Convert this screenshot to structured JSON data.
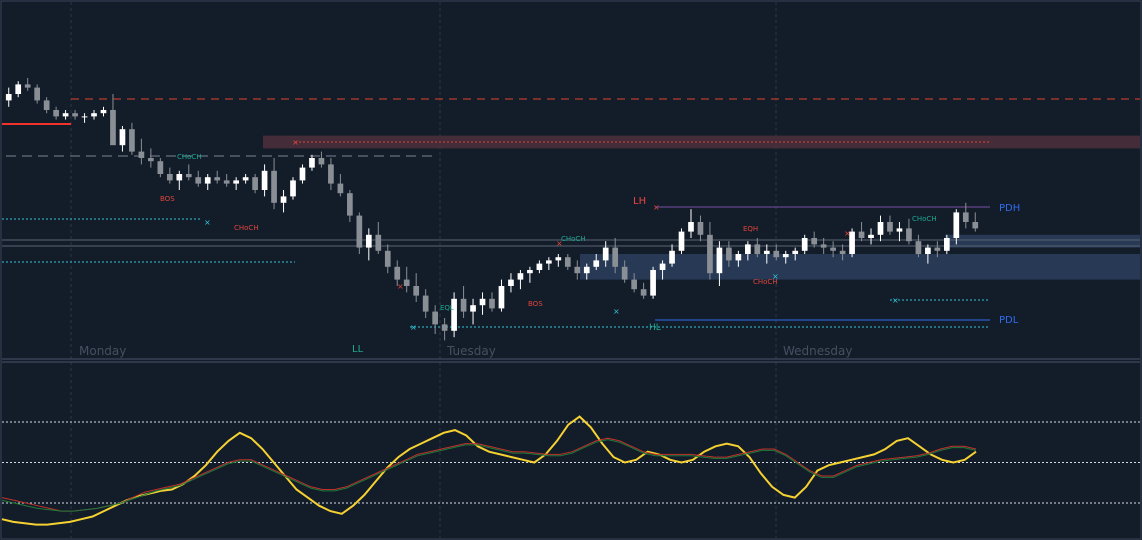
{
  "chart_data": [
    {
      "type": "candlestick",
      "panel": "price",
      "day_labels": [
        "Monday",
        "Tuesday",
        "Wednesday"
      ],
      "levels": {
        "PDH": "PDH",
        "PDL": "PDL"
      },
      "swing_labels": {
        "LH": "LH",
        "LL": "LL",
        "HL": "HL"
      },
      "structure_labels": {
        "bos": "BOS",
        "choch": "CHoCH",
        "eql": "EQL",
        "eqh": "EQH"
      },
      "candles_ohlc": [
        [
          78,
          82,
          76,
          80
        ],
        [
          80,
          84,
          79,
          83
        ],
        [
          83,
          85,
          81,
          82
        ],
        [
          82,
          83,
          77,
          78
        ],
        [
          78,
          79,
          74,
          75
        ],
        [
          75,
          76,
          72,
          73
        ],
        [
          73,
          75,
          72,
          74
        ],
        [
          74,
          75,
          72,
          73
        ],
        [
          73,
          74,
          71,
          73
        ],
        [
          73,
          75,
          72,
          74
        ],
        [
          74,
          76,
          73,
          75
        ],
        [
          75,
          80,
          73,
          64
        ],
        [
          64,
          70,
          62,
          69
        ],
        [
          69,
          71,
          61,
          62
        ],
        [
          62,
          66,
          58,
          60
        ],
        [
          60,
          63,
          57,
          59
        ],
        [
          59,
          60,
          54,
          55
        ],
        [
          55,
          57,
          52,
          53
        ],
        [
          53,
          56,
          50,
          55
        ],
        [
          55,
          58,
          53,
          54
        ],
        [
          54,
          56,
          51,
          52
        ],
        [
          52,
          55,
          50,
          54
        ],
        [
          54,
          56,
          52,
          53
        ],
        [
          53,
          55,
          51,
          52
        ],
        [
          52,
          54,
          50,
          53
        ],
        [
          53,
          55,
          52,
          54
        ],
        [
          54,
          55,
          49,
          50
        ],
        [
          50,
          58,
          48,
          56
        ],
        [
          56,
          60,
          44,
          46
        ],
        [
          46,
          50,
          43,
          48
        ],
        [
          48,
          54,
          47,
          53
        ],
        [
          53,
          58,
          52,
          57
        ],
        [
          57,
          61,
          56,
          60
        ],
        [
          60,
          62,
          57,
          58
        ],
        [
          58,
          60,
          50,
          52
        ],
        [
          52,
          55,
          48,
          49
        ],
        [
          49,
          50,
          40,
          42
        ],
        [
          42,
          43,
          30,
          32
        ],
        [
          32,
          38,
          28,
          36
        ],
        [
          36,
          40,
          30,
          31
        ],
        [
          31,
          33,
          24,
          26
        ],
        [
          26,
          28,
          20,
          22
        ],
        [
          22,
          26,
          18,
          20
        ],
        [
          20,
          24,
          15,
          17
        ],
        [
          17,
          19,
          10,
          12
        ],
        [
          12,
          14,
          5,
          8
        ],
        [
          8,
          10,
          3,
          6
        ],
        [
          6,
          18,
          4,
          16
        ],
        [
          16,
          20,
          10,
          12
        ],
        [
          12,
          16,
          8,
          14
        ],
        [
          14,
          18,
          11,
          16
        ],
        [
          16,
          18,
          12,
          13
        ],
        [
          13,
          22,
          12,
          20
        ],
        [
          20,
          24,
          18,
          22
        ],
        [
          22,
          25,
          19,
          24
        ],
        [
          24,
          26,
          21,
          25
        ],
        [
          25,
          28,
          24,
          27
        ],
        [
          27,
          29,
          25,
          28
        ],
        [
          28,
          30,
          26,
          29
        ],
        [
          29,
          30,
          25,
          26
        ],
        [
          26,
          28,
          22,
          24
        ],
        [
          24,
          27,
          22,
          26
        ],
        [
          26,
          30,
          25,
          28
        ],
        [
          28,
          34,
          26,
          32
        ],
        [
          32,
          35,
          24,
          26
        ],
        [
          26,
          28,
          21,
          22
        ],
        [
          22,
          24,
          18,
          19
        ],
        [
          19,
          21,
          16,
          17
        ],
        [
          17,
          26,
          16,
          25
        ],
        [
          25,
          28,
          22,
          27
        ],
        [
          27,
          33,
          26,
          31
        ],
        [
          31,
          38,
          30,
          37
        ],
        [
          37,
          44,
          35,
          40
        ],
        [
          40,
          42,
          34,
          36
        ],
        [
          36,
          40,
          22,
          24
        ],
        [
          24,
          34,
          20,
          32
        ],
        [
          32,
          34,
          26,
          28
        ],
        [
          28,
          31,
          26,
          30
        ],
        [
          30,
          34,
          28,
          33
        ],
        [
          33,
          35,
          29,
          30
        ],
        [
          30,
          33,
          27,
          31
        ],
        [
          31,
          33,
          28,
          29
        ],
        [
          29,
          31,
          27,
          30
        ],
        [
          30,
          32,
          28,
          31
        ],
        [
          31,
          36,
          30,
          35
        ],
        [
          35,
          37,
          32,
          33
        ],
        [
          33,
          35,
          30,
          32
        ],
        [
          32,
          34,
          29,
          31
        ],
        [
          31,
          33,
          28,
          30
        ],
        [
          30,
          38,
          29,
          37
        ],
        [
          37,
          40,
          34,
          35
        ],
        [
          35,
          38,
          33,
          36
        ],
        [
          36,
          42,
          34,
          40
        ],
        [
          40,
          42,
          36,
          37
        ],
        [
          37,
          40,
          34,
          38
        ],
        [
          38,
          41,
          33,
          34
        ],
        [
          34,
          36,
          29,
          30
        ],
        [
          30,
          33,
          27,
          32
        ],
        [
          32,
          34,
          29,
          31
        ],
        [
          31,
          36,
          30,
          35
        ],
        [
          35,
          44,
          33,
          43
        ],
        [
          43,
          46,
          38,
          40
        ],
        [
          40,
          43,
          37,
          38
        ]
      ],
      "bos_levels": [
        55,
        46,
        26
      ],
      "premium_zone": [
        63,
        67
      ],
      "discount_zones": [
        [
          32,
          36
        ],
        [
          22,
          30
        ]
      ],
      "pdh": 43,
      "pdl": 17
    },
    {
      "type": "line",
      "panel": "oscillator",
      "ylim": [
        0,
        100
      ],
      "levels": [
        80,
        50,
        20
      ],
      "series": [
        {
          "color": "#f5d132",
          "values": [
            8,
            6,
            5,
            4,
            4,
            5,
            6,
            8,
            10,
            14,
            18,
            22,
            25,
            27,
            29,
            30,
            34,
            40,
            48,
            58,
            66,
            72,
            68,
            60,
            50,
            40,
            30,
            24,
            18,
            14,
            12,
            18,
            26,
            36,
            46,
            54,
            60,
            64,
            68,
            72,
            74,
            70,
            62,
            58,
            56,
            54,
            52,
            50,
            56,
            66,
            78,
            84,
            76,
            64,
            54,
            50,
            52,
            58,
            56,
            52,
            50,
            52,
            58,
            62,
            64,
            62,
            54,
            42,
            32,
            26,
            24,
            32,
            44,
            48,
            50,
            52,
            54,
            56,
            60,
            66,
            68,
            62,
            56,
            52,
            50,
            52,
            58
          ]
        },
        {
          "color": "#c0312b",
          "values": [
            24,
            22,
            20,
            18,
            16,
            14,
            14,
            15,
            16,
            18,
            20,
            24,
            28,
            30,
            32,
            34,
            38,
            42,
            46,
            50,
            52,
            52,
            48,
            44,
            40,
            36,
            32,
            30,
            30,
            32,
            36,
            40,
            44,
            48,
            52,
            56,
            58,
            60,
            62,
            64,
            64,
            62,
            60,
            58,
            58,
            57,
            56,
            56,
            58,
            62,
            66,
            68,
            66,
            62,
            58,
            56,
            56,
            56,
            56,
            55,
            54,
            54,
            56,
            58,
            60,
            60,
            56,
            50,
            44,
            40,
            40,
            44,
            48,
            50,
            52,
            53,
            54,
            55,
            57,
            60,
            62,
            62,
            60
          ]
        },
        {
          "color": "#1f7a3a",
          "values": [
            22,
            20,
            18,
            16,
            15,
            14,
            14,
            15,
            16,
            18,
            20,
            23,
            26,
            29,
            31,
            33,
            37,
            41,
            45,
            49,
            51,
            51,
            47,
            43,
            39,
            35,
            31,
            29,
            29,
            31,
            35,
            39,
            43,
            47,
            51,
            55,
            57,
            59,
            61,
            63,
            63,
            61,
            59,
            57,
            57,
            56,
            55,
            55,
            57,
            61,
            65,
            67,
            65,
            61,
            57,
            55,
            55,
            55,
            55,
            54,
            53,
            53,
            55,
            57,
            59,
            59,
            55,
            49,
            43,
            39,
            39,
            43,
            47,
            49,
            51,
            52,
            53,
            54,
            56,
            59,
            61,
            61,
            59
          ]
        }
      ]
    }
  ]
}
